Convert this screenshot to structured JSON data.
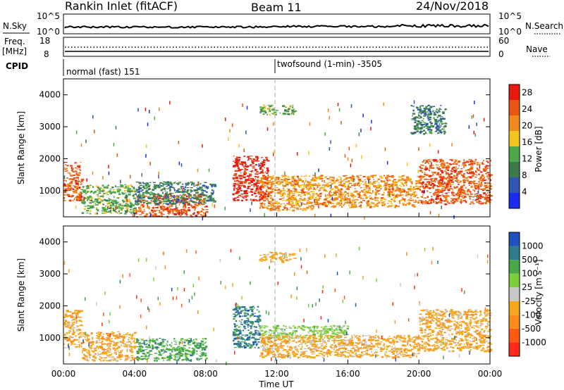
{
  "header": {
    "station": "Rankin Inlet (fitACF)",
    "beam": "Beam 11",
    "date": "24/Nov/2018"
  },
  "noise_panel": {
    "left_label": "N.Sky",
    "left_ticks": [
      "10^5",
      "10^0"
    ],
    "right_label": "N.Search",
    "right_ticks": [
      "10^5",
      "10^0"
    ]
  },
  "freq_panel": {
    "left_label_1": "Freq.",
    "left_label_2": "[MHz]",
    "left_ticks": [
      "18",
      "8"
    ],
    "right_label": "Nave",
    "right_ticks": [
      "60",
      "0"
    ]
  },
  "cpid_panel": {
    "label": "CPID",
    "modes": [
      {
        "name": "normal (fast) 151",
        "start_hour": 0
      },
      {
        "name": "twofsound (1-min) -3505",
        "start_hour": 12
      }
    ]
  },
  "colors": {
    "power_scale": [
      "#1a2cf0",
      "#2f55b5",
      "#3d7a4c",
      "#4da84a",
      "#f2c61e",
      "#f08a1c",
      "#ea5512",
      "#e81a10"
    ],
    "velocity_scale": [
      "#ff2a1a",
      "#ff5a14",
      "#ff8a1c",
      "#f5a81e",
      "#c8c8c8",
      "#7ccf3a",
      "#48a848",
      "#2f7a8c",
      "#1f52c0"
    ]
  },
  "chart_data": [
    {
      "type": "heatmap",
      "title": "Power",
      "ylabel": "Slant Range [km]",
      "xlabel": "",
      "x_ticks": [
        "00:00",
        "04:00",
        "08:00",
        "12:00",
        "16:00",
        "20:00",
        "00:00"
      ],
      "xlim_hours": [
        0,
        24
      ],
      "ylim": [
        180,
        4500
      ],
      "y_ticks": [
        1000,
        2000,
        3000,
        4000
      ],
      "colorbar": {
        "label": "Power [dB]",
        "ticks": [
          4,
          8,
          12,
          16,
          20,
          24,
          28
        ],
        "range": [
          0,
          30
        ]
      },
      "echo_regions": [
        {
          "t0": 0.0,
          "t1": 1.0,
          "r0": 700,
          "r1": 1900,
          "value": 26
        },
        {
          "t0": 1.0,
          "t1": 4.0,
          "r0": 300,
          "r1": 1200,
          "value": 12
        },
        {
          "t0": 4.0,
          "t1": 8.0,
          "r0": 200,
          "r1": 900,
          "value": 24
        },
        {
          "t0": 4.0,
          "t1": 8.5,
          "r0": 600,
          "r1": 1300,
          "value": 8
        },
        {
          "t0": 9.5,
          "t1": 11.5,
          "r0": 700,
          "r1": 2100,
          "value": 28
        },
        {
          "t0": 11.0,
          "t1": 14.0,
          "r0": 400,
          "r1": 1500,
          "value": 20
        },
        {
          "t0": 14.0,
          "t1": 20.0,
          "r0": 500,
          "r1": 1500,
          "value": 20
        },
        {
          "t0": 20.0,
          "t1": 24.0,
          "r0": 600,
          "r1": 2000,
          "value": 24
        },
        {
          "t0": 11.0,
          "t1": 13.0,
          "r0": 3400,
          "r1": 3700,
          "value": 14
        },
        {
          "t0": 19.5,
          "t1": 21.5,
          "r0": 2800,
          "r1": 3700,
          "value": 10
        }
      ]
    },
    {
      "type": "heatmap",
      "title": "Velocity",
      "ylabel": "Slant Range [km]",
      "xlabel": "Time UT",
      "x_ticks": [
        "00:00",
        "04:00",
        "08:00",
        "12:00",
        "16:00",
        "20:00",
        "00:00"
      ],
      "xlim_hours": [
        0,
        24
      ],
      "ylim": [
        180,
        4500
      ],
      "y_ticks": [
        1000,
        2000,
        3000,
        4000
      ],
      "colorbar": {
        "label": "Velocity [m s⁻¹]",
        "ticks": [
          "1000",
          "500",
          "100",
          "25",
          "-25",
          "-100",
          "-500",
          "-1000"
        ]
      },
      "echo_regions": [
        {
          "t0": 0.0,
          "t1": 1.0,
          "r0": 700,
          "r1": 1900,
          "value": "-100"
        },
        {
          "t0": 1.0,
          "t1": 4.0,
          "r0": 300,
          "r1": 1200,
          "value": "-100"
        },
        {
          "t0": 4.0,
          "t1": 8.0,
          "r0": 300,
          "r1": 1000,
          "value": "100"
        },
        {
          "t0": 9.5,
          "t1": 11.0,
          "r0": 700,
          "r1": 2000,
          "value": "500"
        },
        {
          "t0": 11.0,
          "t1": 16.0,
          "r0": 1000,
          "r1": 1400,
          "value": "25"
        },
        {
          "t0": 11.0,
          "t1": 20.0,
          "r0": 400,
          "r1": 1100,
          "value": "-100"
        },
        {
          "t0": 20.0,
          "t1": 24.0,
          "r0": 600,
          "r1": 1900,
          "value": "-100"
        },
        {
          "t0": 11.0,
          "t1": 13.0,
          "r0": 3400,
          "r1": 3700,
          "value": "-100"
        }
      ]
    }
  ]
}
